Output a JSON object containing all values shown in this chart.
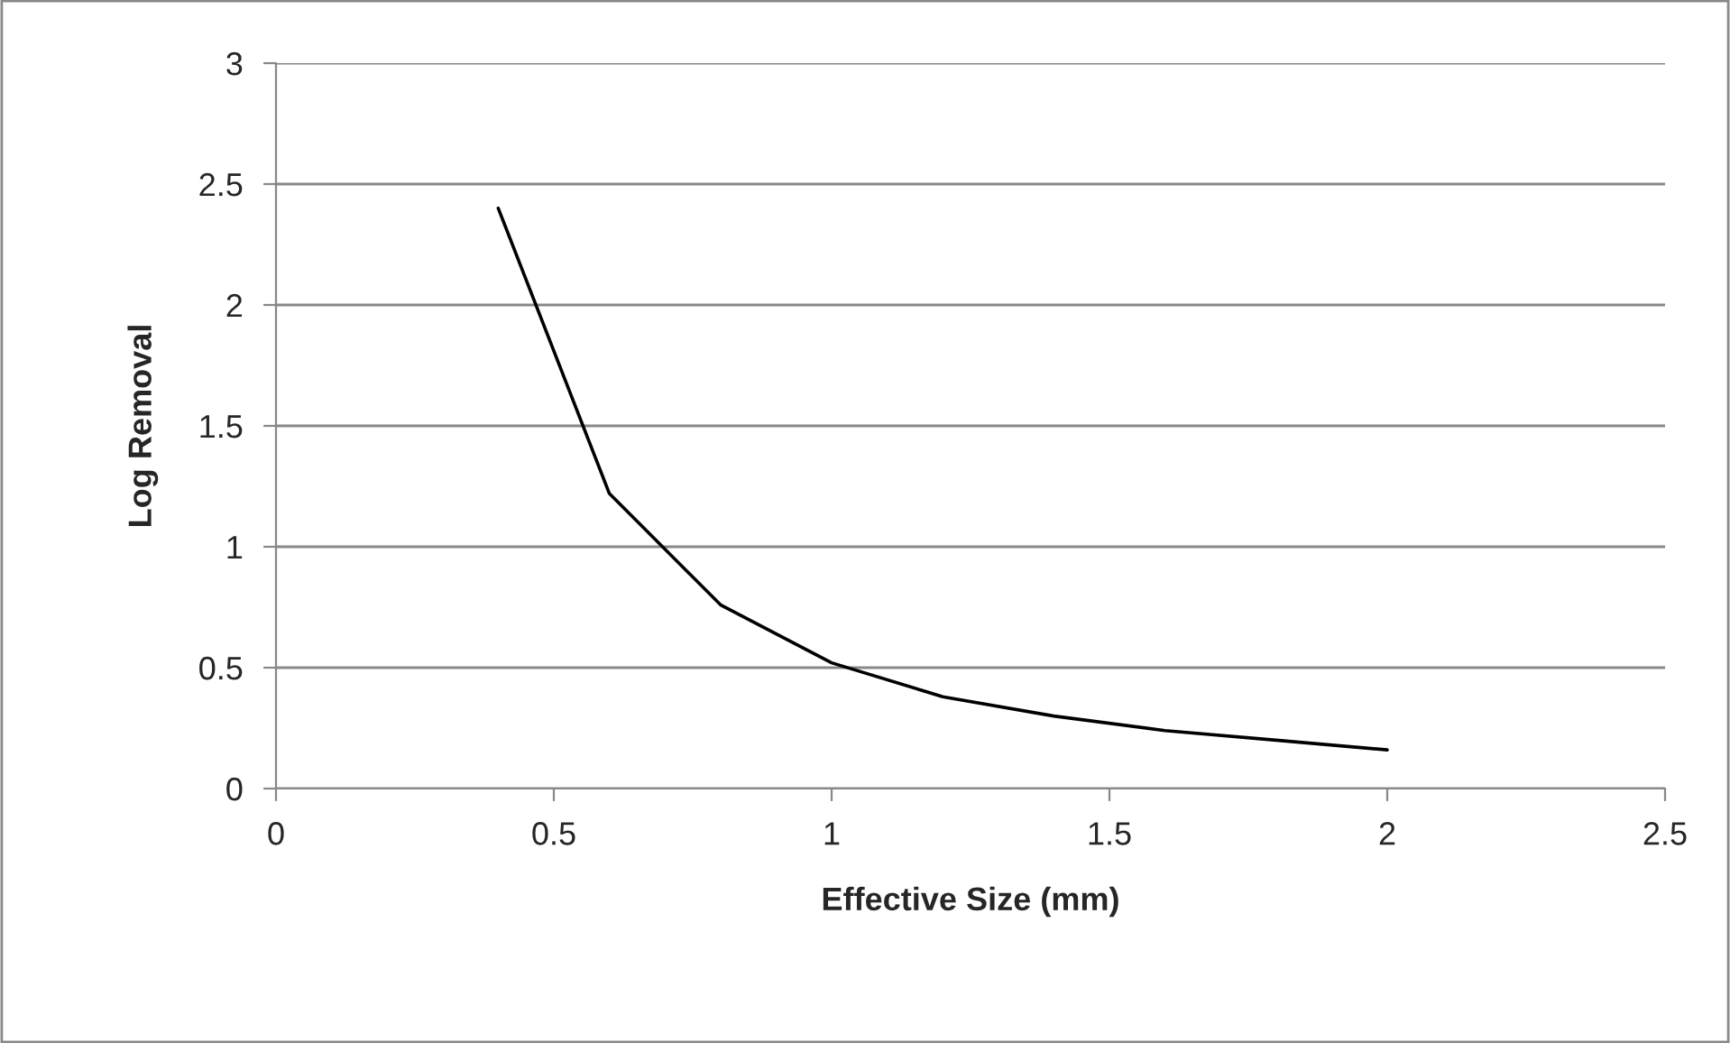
{
  "chart_data": {
    "type": "line",
    "xlabel": "Effective Size (mm)",
    "ylabel": "Log Removal",
    "x": [
      0.4,
      0.6,
      0.8,
      1.0,
      1.2,
      1.4,
      1.6,
      1.8,
      2.0
    ],
    "series": [
      {
        "color": "#000000",
        "values": [
          2.4,
          1.22,
          0.76,
          0.52,
          0.38,
          0.3,
          0.24,
          0.2,
          0.16
        ]
      }
    ],
    "xlim": [
      0,
      2.5
    ],
    "xticks": [
      0,
      0.5,
      1,
      1.5,
      2,
      2.5
    ],
    "ylim": [
      0,
      3
    ],
    "yticks": [
      0,
      0.5,
      1,
      1.5,
      2,
      2.5,
      3
    ],
    "grid": "y",
    "marker": "none",
    "line_style": "solid"
  }
}
